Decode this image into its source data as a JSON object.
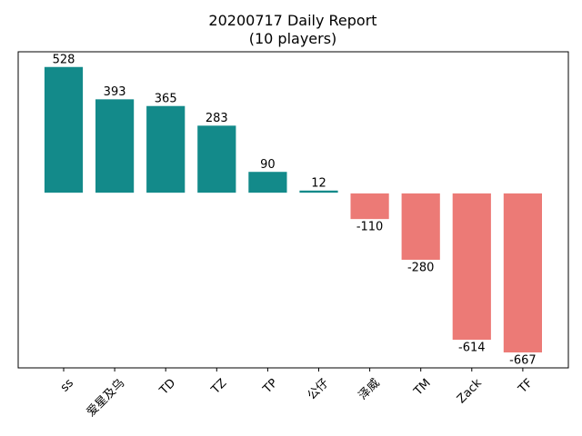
{
  "chart_data": {
    "type": "bar",
    "title": "20200717 Daily Report",
    "subtitle": "(10 players)",
    "xlabel": "",
    "ylabel": "",
    "categories": [
      "ss",
      "爱星及乌",
      "TD",
      "TZ",
      "TP",
      "公仔",
      "泽威",
      "TM",
      "Zack",
      "TF"
    ],
    "values": [
      528,
      393,
      365,
      283,
      90,
      12,
      -110,
      -280,
      -614,
      -667
    ],
    "ylim": [
      -730,
      590
    ],
    "grid": false,
    "legend": "none",
    "colors": {
      "positive": "#138a8a",
      "negative": "#ec7a76"
    }
  }
}
